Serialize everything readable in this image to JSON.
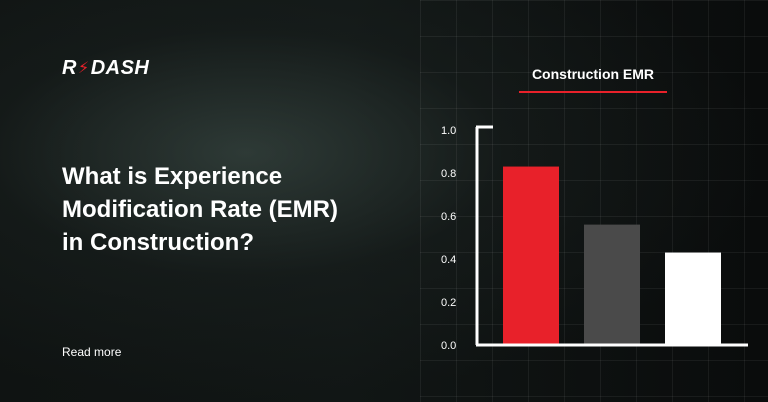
{
  "brand": {
    "logo_left": "R",
    "logo_right": "DASH",
    "accent": "#e8212a"
  },
  "headline": "What is Experience Modification Rate (EMR) in Construction?",
  "read_more": "Read more",
  "chart_data": {
    "type": "bar",
    "title": "Construction EMR",
    "categories": [
      "",
      "",
      ""
    ],
    "values": [
      0.83,
      0.56,
      0.43
    ],
    "colors": [
      "#e8212a",
      "#4a4a4a",
      "#ffffff"
    ],
    "ylim": [
      0,
      1.0
    ],
    "yticks": [
      "1.0",
      "0.8",
      "0.6",
      "0.4",
      "0.2",
      "0.0"
    ],
    "xlabel": "",
    "ylabel": "",
    "grid": false
  }
}
